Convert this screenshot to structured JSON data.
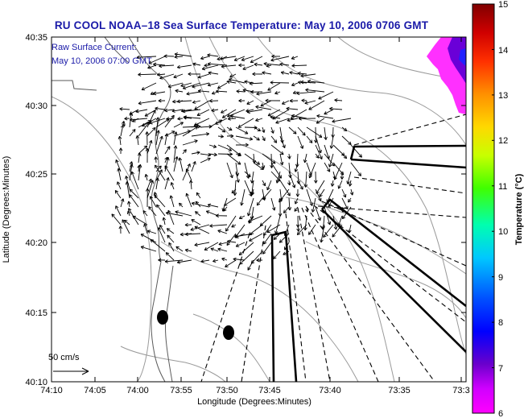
{
  "title": "RU COOL  NOAA–18  Sea Surface Temperature:  May 10, 2006 0706 GMT",
  "annotation": {
    "line1": "Raw Surface Current:",
    "line2": "May 10, 2006 07:00 GMT"
  },
  "scale_label": "50 cm/s",
  "axes": {
    "xlabel": "Longitude (Degrees:Minutes)",
    "ylabel": "Latitude (Degrees:Minutes)",
    "x_ticks": [
      "74:10",
      "74:05",
      "74:00",
      "73:55",
      "73:50",
      "73:45",
      "73:40",
      "73:35",
      "73:3"
    ],
    "y_ticks": [
      "40:35",
      "40:30",
      "40:25",
      "40:20",
      "40:15",
      "40:10"
    ]
  },
  "colorbar": {
    "title": "Temperature (°C)",
    "ticks": [
      "15",
      "14",
      "13",
      "12",
      "11",
      "10",
      "9",
      "8",
      "7",
      "6"
    ],
    "colors": [
      "#ff00ff",
      "#6a00cc",
      "#0000ff",
      "#0070ff",
      "#00d8ff",
      "#00ffa0",
      "#60ff00",
      "#d8ff00",
      "#ffc000",
      "#ff6000",
      "#e00000",
      "#800000"
    ]
  }
}
